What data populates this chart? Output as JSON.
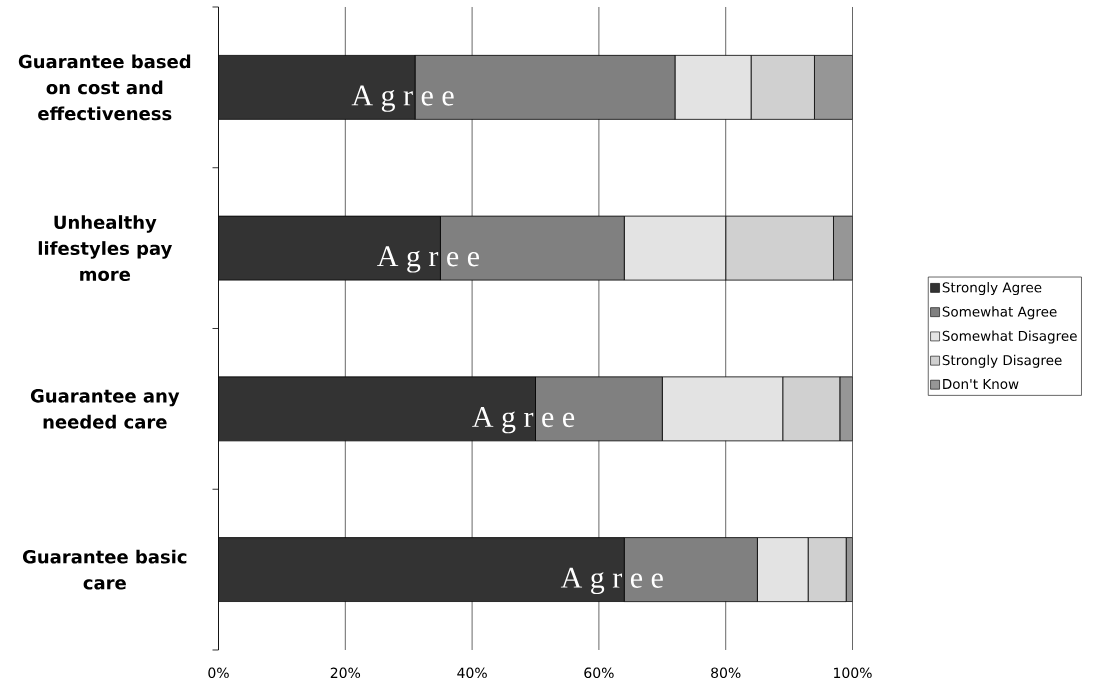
{
  "chart_data": {
    "type": "bar",
    "orientation": "horizontal",
    "stacked": true,
    "categories": [
      "Guarantee based on cost and effectiveness",
      "Unhealthy lifestyles pay more",
      "Guarantee any needed care",
      "Guarantee basic care"
    ],
    "series": [
      {
        "name": "Strongly Agree",
        "color": "#333333",
        "values": [
          31,
          35,
          50,
          64
        ]
      },
      {
        "name": "Somewhat Agree",
        "color": "#808080",
        "values": [
          41,
          29,
          20,
          21
        ]
      },
      {
        "name": "Somewhat Disagree",
        "color": "#e3e3e3",
        "values": [
          12,
          16,
          19,
          8
        ]
      },
      {
        "name": "Strongly Disagree",
        "color": "#d0d0d0",
        "values": [
          10,
          17,
          9,
          6
        ]
      },
      {
        "name": "Don't Know",
        "color": "#969696",
        "values": [
          6,
          3,
          2,
          1
        ]
      }
    ],
    "xlim": [
      0,
      100
    ],
    "xticks": [
      {
        "value": 0,
        "label": "0%"
      },
      {
        "value": 20,
        "label": "20%"
      },
      {
        "value": 40,
        "label": "40%"
      },
      {
        "value": 60,
        "label": "60%"
      },
      {
        "value": 80,
        "label": "80%"
      },
      {
        "value": 100,
        "label": "100%"
      }
    ],
    "grid": "x",
    "legend": "right",
    "annotations": [
      "A g r e e",
      "A g r e e",
      "A g r e e",
      "A g r e e"
    ]
  }
}
